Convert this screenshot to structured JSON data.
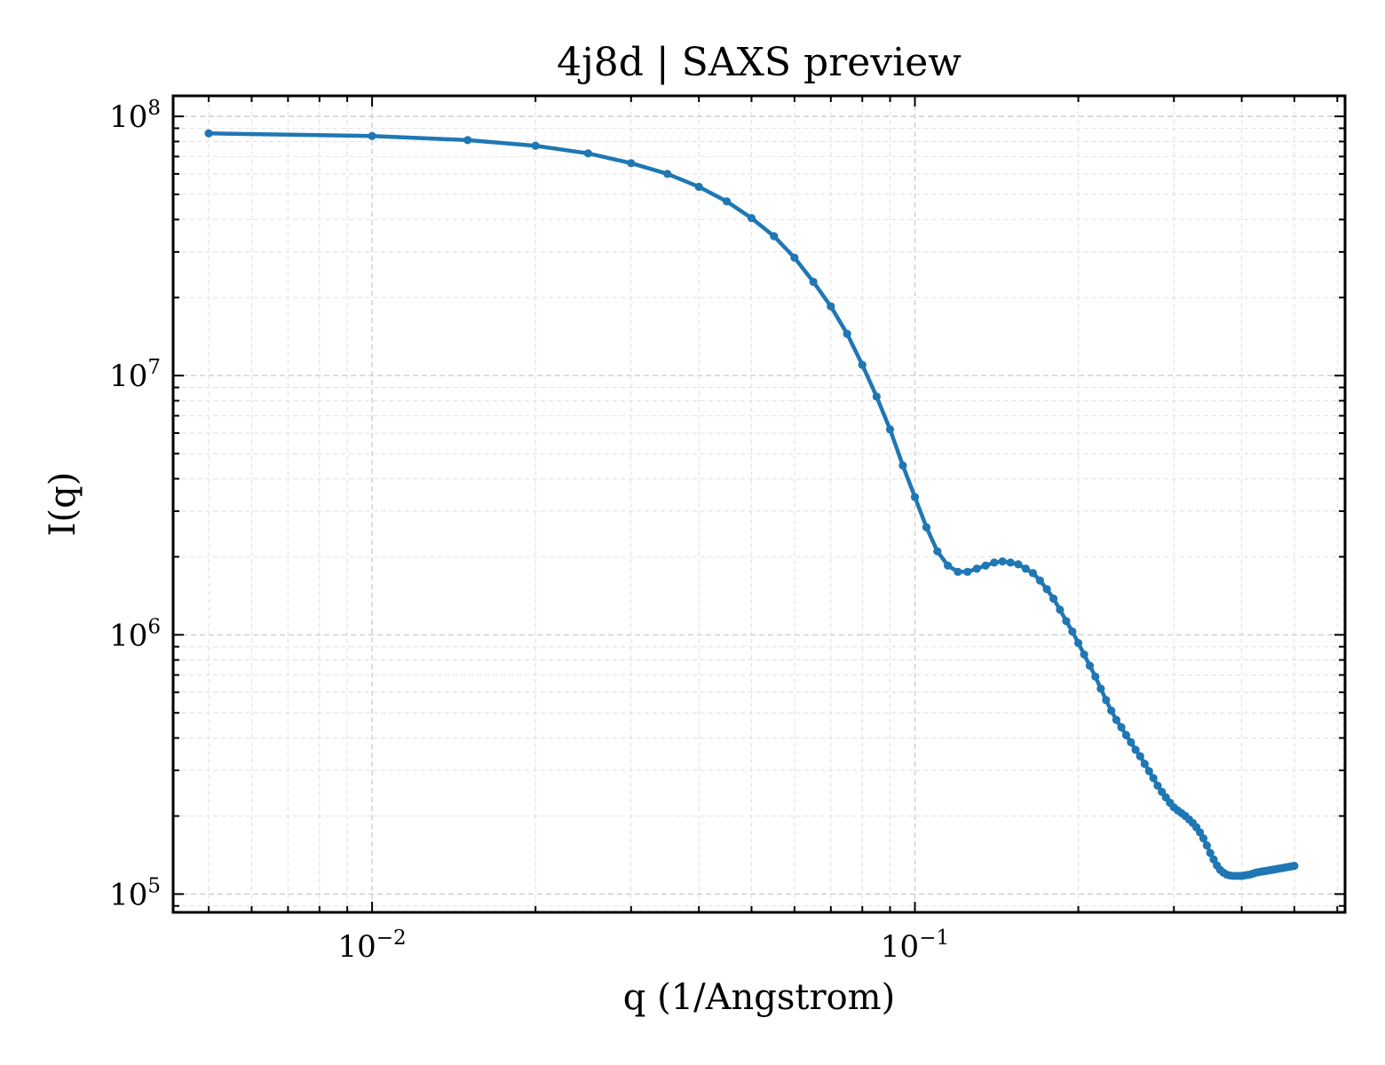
{
  "chart_data": {
    "type": "line",
    "title": "4j8d | SAXS preview",
    "xlabel": "q (1/Angstrom)",
    "ylabel": "I(q)",
    "xscale": "log",
    "yscale": "log",
    "xlim": [
      0.0043,
      0.62
    ],
    "ylim": [
      85000,
      120000000
    ],
    "grid": true,
    "color": "#1f77b4",
    "x_ticks": [
      {
        "value": 0.01,
        "base": "10",
        "exp": "−2"
      },
      {
        "value": 0.1,
        "base": "10",
        "exp": "−1"
      }
    ],
    "y_ticks": [
      {
        "value": 100000,
        "base": "10",
        "exp": "5"
      },
      {
        "value": 1000000,
        "base": "10",
        "exp": "6"
      },
      {
        "value": 10000000,
        "base": "10",
        "exp": "7"
      },
      {
        "value": 100000000,
        "base": "10",
        "exp": "8"
      }
    ],
    "series": [
      {
        "x": [
          0.005,
          0.01,
          0.015,
          0.02,
          0.025,
          0.03,
          0.035,
          0.04,
          0.045,
          0.05,
          0.055,
          0.06,
          0.065,
          0.07,
          0.075,
          0.08,
          0.085,
          0.09,
          0.095,
          0.1,
          0.105,
          0.11,
          0.115,
          0.12,
          0.125,
          0.13,
          0.135,
          0.14,
          0.145,
          0.15,
          0.155,
          0.16,
          0.165,
          0.17,
          0.175,
          0.18,
          0.185,
          0.19,
          0.195,
          0.2,
          0.205,
          0.21,
          0.215,
          0.22,
          0.225,
          0.23,
          0.235,
          0.24,
          0.245,
          0.25,
          0.255,
          0.26,
          0.265,
          0.27,
          0.275,
          0.28,
          0.285,
          0.29,
          0.295,
          0.3,
          0.305,
          0.31,
          0.315,
          0.32,
          0.325,
          0.33,
          0.335,
          0.34,
          0.345,
          0.35,
          0.355,
          0.36,
          0.365,
          0.37,
          0.375,
          0.38,
          0.385,
          0.39,
          0.395,
          0.4,
          0.405,
          0.41,
          0.415,
          0.42,
          0.425,
          0.43,
          0.435,
          0.44,
          0.445,
          0.45,
          0.455,
          0.46,
          0.465,
          0.47,
          0.475,
          0.48,
          0.485,
          0.49,
          0.495,
          0.5
        ],
        "y": [
          86000000,
          84000000,
          81000000,
          77000000,
          72000000,
          66000000,
          60000000,
          53500000,
          47000000,
          40500000,
          34500000,
          28500000,
          23000000,
          18500000,
          14500000,
          11000000,
          8300000,
          6200000,
          4500000,
          3400000,
          2600000,
          2100000,
          1850000,
          1750000,
          1750000,
          1800000,
          1850000,
          1900000,
          1920000,
          1900000,
          1870000,
          1800000,
          1730000,
          1620000,
          1500000,
          1380000,
          1250000,
          1130000,
          1030000,
          930000,
          840000,
          760000,
          690000,
          620000,
          560000,
          510000,
          470000,
          440000,
          410000,
          385000,
          360000,
          340000,
          318000,
          298000,
          280000,
          262000,
          248000,
          236000,
          225000,
          216000,
          210000,
          205000,
          200000,
          194000,
          188000,
          181000,
          173000,
          164000,
          154000,
          144000,
          136000,
          129000,
          124000,
          121000,
          119000,
          118000,
          117500,
          117500,
          117500,
          117500,
          118000,
          118500,
          119000,
          120000,
          121000,
          121500,
          122000,
          122500,
          123000,
          123500,
          124000,
          124500,
          125000,
          125500,
          126000,
          126500,
          127000,
          127500,
          128000,
          128500
        ]
      }
    ]
  }
}
